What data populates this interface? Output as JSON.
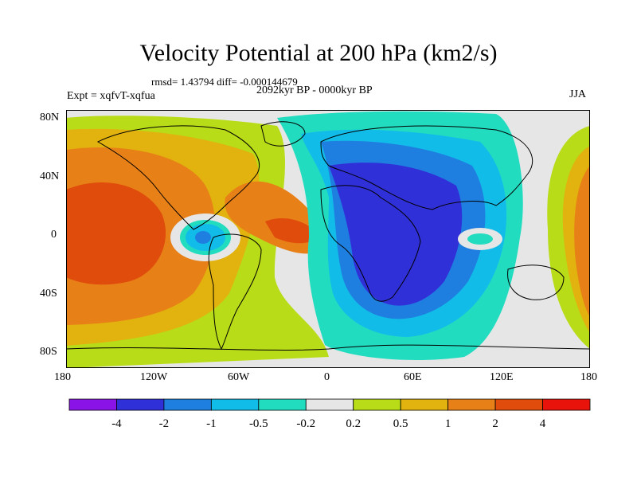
{
  "title": "Velocity Potential at 200 hPa (km2/s)",
  "stats": "rmsd= 1.43794 diff= -0.000144679",
  "experiment": "Expt = xqfvT-xqfua",
  "period": "2092kyr BP - 0000kyr BP",
  "season": "JJA",
  "y_axis_labels": [
    "80N",
    "40N",
    "0",
    "40S",
    "80S"
  ],
  "x_axis_labels": [
    "180",
    "120W",
    "60W",
    "0",
    "60E",
    "120E",
    "180"
  ],
  "colorbar": {
    "labels": [
      "-4",
      "-2",
      "-1",
      "-0.5",
      "-0.2",
      "0.2",
      "0.5",
      "1",
      "2",
      "4"
    ],
    "colors": [
      "#8a14e8",
      "#3030d8",
      "#1f7fe0",
      "#12bce8",
      "#22dcc0",
      "#e6e6e6",
      "#b8dc18",
      "#e2b20e",
      "#e88018",
      "#e04c0c",
      "#e8140c"
    ]
  },
  "palette": {
    "land_outline": "#000000",
    "neutral": "#e6e6e6"
  }
}
